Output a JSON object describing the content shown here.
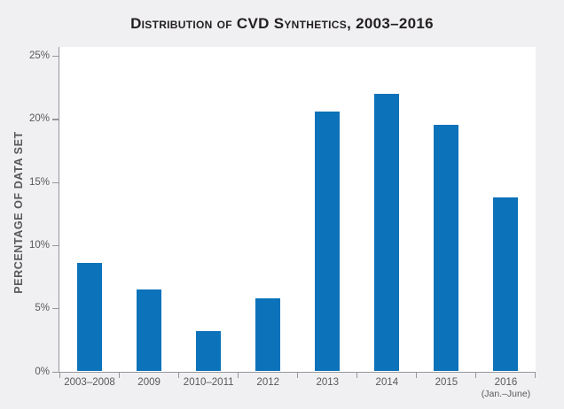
{
  "chart_data": {
    "type": "bar",
    "title": "Distribution of CVD Synthetics, 2003–2016",
    "ylabel": "PERCENTAGE OF DATA SET",
    "xlabel": "",
    "categories": [
      "2003–2008",
      "2009",
      "2010–2011",
      "2012",
      "2013",
      "2014",
      "2015",
      "2016"
    ],
    "category_sublabels": [
      "",
      "",
      "",
      "",
      "",
      "",
      "",
      "(Jan.–June)"
    ],
    "values": [
      8.6,
      6.5,
      3.2,
      5.8,
      20.6,
      22,
      19.5,
      13.8
    ],
    "unit": "%",
    "ylim": [
      0,
      25
    ],
    "yticks": [
      0,
      5,
      10,
      15,
      20,
      25
    ],
    "ytick_labels": [
      "0%",
      "5%",
      "10%",
      "15%",
      "20%",
      "25%"
    ],
    "grid": false,
    "legend": "none",
    "colors": {
      "background": "#f0f0f2",
      "plot_background": "#ffffff",
      "bar": "#0c72b9",
      "axis": "#95969a",
      "tick_text": "#58595b",
      "title_text": "#231f20"
    }
  }
}
